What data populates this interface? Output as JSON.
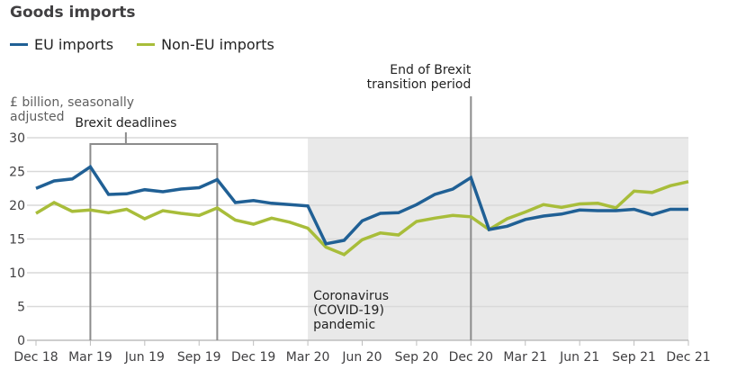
{
  "chart_data": {
    "type": "line",
    "title": "Goods imports",
    "ylabel": "£ billion, seasonally adjusted",
    "ylabel_lines": [
      "£ billion, seasonally",
      "adjusted"
    ],
    "xlabel": "",
    "ylim": [
      0,
      30
    ],
    "yticks": [
      0,
      5,
      10,
      15,
      20,
      25,
      30
    ],
    "grid": true,
    "legend_position": "top-left",
    "x": [
      "Dec 18",
      "Jan 19",
      "Feb 19",
      "Mar 19",
      "Apr 19",
      "May 19",
      "Jun 19",
      "Jul 19",
      "Aug 19",
      "Sep 19",
      "Oct 19",
      "Nov 19",
      "Dec 19",
      "Jan 20",
      "Feb 20",
      "Mar 20",
      "Apr 20",
      "May 20",
      "Jun 20",
      "Jul 20",
      "Aug 20",
      "Sep 20",
      "Oct 20",
      "Nov 20",
      "Dec 20",
      "Jan 21",
      "Feb 21",
      "Mar 21",
      "Apr 21",
      "May 21",
      "Jun 21",
      "Jul 21",
      "Aug 21",
      "Sep 21",
      "Oct 21",
      "Nov 21",
      "Dec 21"
    ],
    "xtick_labels": [
      "Dec 18",
      "Mar 19",
      "Jun 19",
      "Sep 19",
      "Dec 19",
      "Mar 20",
      "Jun 20",
      "Sep 20",
      "Dec 20",
      "Mar 21",
      "Jun 21",
      "Sep 21",
      "Dec 21"
    ],
    "series": [
      {
        "name": "EU imports",
        "color": "#206095",
        "values": [
          22.5,
          23.6,
          23.9,
          25.7,
          21.6,
          21.7,
          22.3,
          22.0,
          22.4,
          22.6,
          23.8,
          20.4,
          20.7,
          20.3,
          20.1,
          19.9,
          14.3,
          14.8,
          17.7,
          18.8,
          18.9,
          20.1,
          21.6,
          22.4,
          24.1,
          16.4,
          16.9,
          17.9,
          18.4,
          18.7,
          19.3,
          19.2,
          19.2,
          19.4,
          18.6,
          19.4,
          19.4
        ]
      },
      {
        "name": "Non-EU imports",
        "color": "#a8bd3a",
        "values": [
          18.8,
          20.4,
          19.1,
          19.3,
          18.9,
          19.4,
          18.0,
          19.2,
          18.8,
          18.5,
          19.6,
          17.8,
          17.2,
          18.1,
          17.5,
          16.6,
          13.8,
          12.7,
          14.9,
          15.9,
          15.6,
          17.6,
          18.1,
          18.5,
          18.3,
          16.4,
          18.0,
          19.0,
          20.1,
          19.7,
          20.2,
          20.3,
          19.6,
          22.1,
          21.9,
          22.9,
          23.5
        ]
      }
    ],
    "annotations": {
      "brexit_deadlines": {
        "label": "Brexit deadlines",
        "from": "Mar 19",
        "to": "Oct 19"
      },
      "transition": {
        "label_lines": [
          "End of Brexit",
          "transition period"
        ],
        "at": "Dec 20"
      },
      "covid": {
        "label_lines": [
          "Coronavirus",
          "(COVID-19)",
          "pandemic"
        ],
        "from": "Mar 20",
        "to": "Dec 21",
        "shade_color": "#e9e9e9"
      }
    }
  }
}
